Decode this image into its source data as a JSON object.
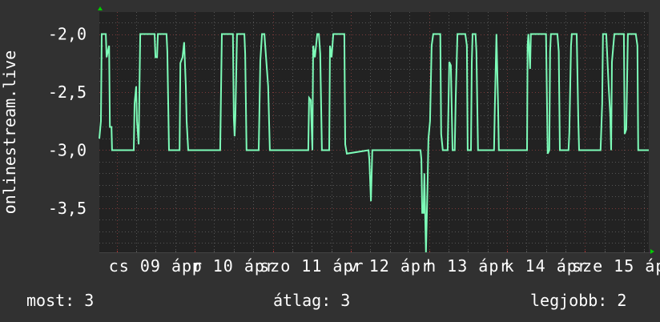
{
  "chart_data": {
    "type": "line",
    "ylabel": "onlinestream.live",
    "ylim": [
      -3.88,
      -1.81
    ],
    "xlim": [
      "04-08 18:40",
      "04-15 19:35"
    ],
    "y_ticks": [
      {
        "value": -2.0,
        "label": "-2,0"
      },
      {
        "value": -2.5,
        "label": "-2,5"
      },
      {
        "value": -3.0,
        "label": "-3,0"
      },
      {
        "value": -3.5,
        "label": "-3,5"
      }
    ],
    "x_ticks": [
      {
        "day": "04-09",
        "label": "cs 09 ápr"
      },
      {
        "day": "04-10",
        "label": "p 10 ápr"
      },
      {
        "day": "04-11",
        "label": "szo 11 ápr"
      },
      {
        "day": "04-12",
        "label": "v 12 ápr"
      },
      {
        "day": "04-13",
        "label": "h 13 ápr"
      },
      {
        "day": "04-14",
        "label": "k 14 ápr"
      },
      {
        "day": "04-15",
        "label": "sze 15 ápr"
      }
    ],
    "grid": true,
    "colors": {
      "line": "#7dfcb8",
      "background": "#313131",
      "plot": "#222222",
      "major_grid": "#7a3a3a",
      "minor_grid": "#555555",
      "arrow": "#00cc00"
    },
    "series": [
      {
        "points": [
          [
            "04-08 18:40",
            -2.9
          ],
          [
            "04-08 19:10",
            -2.75
          ],
          [
            "04-08 19:25",
            -2.0
          ],
          [
            "04-08 20:40",
            -2.0
          ],
          [
            "04-08 20:55",
            -2.2
          ],
          [
            "04-08 21:40",
            -2.1
          ],
          [
            "04-08 21:55",
            -2.8
          ],
          [
            "04-08 22:25",
            -2.8
          ],
          [
            "04-08 22:35",
            -3.0
          ],
          [
            "04-09 05:15",
            -3.0
          ],
          [
            "04-09 05:30",
            -2.6
          ],
          [
            "04-09 06:00",
            -2.45
          ],
          [
            "04-09 06:15",
            -2.75
          ],
          [
            "04-09 06:45",
            -2.95
          ],
          [
            "04-09 07:15",
            -2.0
          ],
          [
            "04-09 11:40",
            -2.0
          ],
          [
            "04-09 11:55",
            -2.2
          ],
          [
            "04-09 12:25",
            -2.2
          ],
          [
            "04-09 12:40",
            -2.0
          ],
          [
            "04-09 15:20",
            -2.0
          ],
          [
            "04-09 15:35",
            -2.15
          ],
          [
            "04-09 16:05",
            -3.0
          ],
          [
            "04-09 19:20",
            -3.0
          ],
          [
            "04-09 19:35",
            -2.25
          ],
          [
            "04-09 20:15",
            -2.2
          ],
          [
            "04-09 20:45",
            -2.07
          ],
          [
            "04-09 21:15",
            -2.45
          ],
          [
            "04-09 21:30",
            -2.75
          ],
          [
            "04-09 22:00",
            -3.0
          ],
          [
            "04-10 07:50",
            -3.0
          ],
          [
            "04-10 08:20",
            -2.0
          ],
          [
            "04-10 11:45",
            -2.0
          ],
          [
            "04-10 12:00",
            -2.72
          ],
          [
            "04-10 12:15",
            -2.88
          ],
          [
            "04-10 12:30",
            -2.7
          ],
          [
            "04-10 13:00",
            -2.0
          ],
          [
            "04-10 15:15",
            -2.0
          ],
          [
            "04-10 15:30",
            -2.17
          ],
          [
            "04-10 15:55",
            -3.0
          ],
          [
            "04-10 19:40",
            -3.0
          ],
          [
            "04-10 20:10",
            -2.23
          ],
          [
            "04-10 20:40",
            -2.0
          ],
          [
            "04-10 21:25",
            -2.0
          ],
          [
            "04-10 21:40",
            -2.1
          ],
          [
            "04-10 22:10",
            -2.3
          ],
          [
            "04-10 22:35",
            -2.45
          ],
          [
            "04-10 23:05",
            -3.0
          ],
          [
            "04-11 10:55",
            -3.0
          ],
          [
            "04-11 11:10",
            -2.55
          ],
          [
            "04-11 11:40",
            -2.57
          ],
          [
            "04-11 12:10",
            -3.0
          ],
          [
            "04-11 12:25",
            -2.1
          ],
          [
            "04-11 12:55",
            -2.2
          ],
          [
            "04-11 13:40",
            -2.0
          ],
          [
            "04-11 14:10",
            -2.0
          ],
          [
            "04-11 14:35",
            -2.17
          ],
          [
            "04-11 15:05",
            -3.0
          ],
          [
            "04-11 17:20",
            -3.0
          ],
          [
            "04-11 17:35",
            -2.1
          ],
          [
            "04-11 18:05",
            -2.2
          ],
          [
            "04-11 18:35",
            -2.0
          ],
          [
            "04-11 22:00",
            -2.0
          ],
          [
            "04-11 22:15",
            -2.95
          ],
          [
            "04-11 22:45",
            -3.03
          ],
          [
            "04-12 05:25",
            -3.0
          ],
          [
            "04-12 05:40",
            -3.08
          ],
          [
            "04-12 06:10",
            -3.44
          ],
          [
            "04-12 06:35",
            -3.0
          ],
          [
            "04-12 21:25",
            -3.0
          ],
          [
            "04-12 21:40",
            -3.08
          ],
          [
            "04-12 21:55",
            -3.54
          ],
          [
            "04-12 22:20",
            -3.54
          ],
          [
            "04-12 22:35",
            -3.2
          ],
          [
            "04-12 23:05",
            -3.88
          ],
          [
            "04-12 23:35",
            -3.3
          ],
          [
            "04-12 23:50",
            -2.9
          ],
          [
            "04-13 00:20",
            -2.75
          ],
          [
            "04-13 00:50",
            -2.1
          ],
          [
            "04-13 01:20",
            -2.0
          ],
          [
            "04-13 03:30",
            -2.0
          ],
          [
            "04-13 03:45",
            -2.86
          ],
          [
            "04-13 04:15",
            -3.0
          ],
          [
            "04-13 05:45",
            -3.0
          ],
          [
            "04-13 06:15",
            -2.24
          ],
          [
            "04-13 06:45",
            -2.27
          ],
          [
            "04-13 07:15",
            -3.0
          ],
          [
            "04-13 07:55",
            -3.0
          ],
          [
            "04-13 08:15",
            -2.54
          ],
          [
            "04-13 08:45",
            -2.0
          ],
          [
            "04-13 11:10",
            -2.0
          ],
          [
            "04-13 11:40",
            -2.1
          ],
          [
            "04-13 11:55",
            -3.0
          ],
          [
            "04-13 12:55",
            -3.0
          ],
          [
            "04-13 13:10",
            -2.25
          ],
          [
            "04-13 13:25",
            -2.0
          ],
          [
            "04-13 14:20",
            -2.0
          ],
          [
            "04-13 14:35",
            -2.15
          ],
          [
            "04-13 15:05",
            -3.0
          ],
          [
            "04-13 20:00",
            -3.0
          ],
          [
            "04-13 20:15",
            -2.63
          ],
          [
            "04-13 20:45",
            -2.0
          ],
          [
            "04-13 21:15",
            -2.6
          ],
          [
            "04-13 21:30",
            -3.0
          ],
          [
            "04-14 06:10",
            -3.0
          ],
          [
            "04-14 06:20",
            -2.1
          ],
          [
            "04-14 06:35",
            -2.0
          ],
          [
            "04-14 07:05",
            -2.3
          ],
          [
            "04-14 07:20",
            -2.0
          ],
          [
            "04-14 12:00",
            -2.0
          ],
          [
            "04-14 12:30",
            -3.03
          ],
          [
            "04-14 13:00",
            -3.0
          ],
          [
            "04-14 13:15",
            -2.15
          ],
          [
            "04-14 13:30",
            -2.0
          ],
          [
            "04-14 15:30",
            -2.0
          ],
          [
            "04-14 15:55",
            -2.15
          ],
          [
            "04-14 16:15",
            -3.0
          ],
          [
            "04-14 18:55",
            -3.0
          ],
          [
            "04-14 19:10",
            -2.85
          ],
          [
            "04-14 19:40",
            -2.1
          ],
          [
            "04-14 19:55",
            -2.0
          ],
          [
            "04-14 21:25",
            -2.0
          ],
          [
            "04-14 21:55",
            -2.74
          ],
          [
            "04-14 22:10",
            -3.0
          ],
          [
            "04-15 04:45",
            -3.0
          ],
          [
            "04-15 05:15",
            -2.6
          ],
          [
            "04-15 05:30",
            -2.0
          ],
          [
            "04-15 06:30",
            -2.0
          ],
          [
            "04-15 07:15",
            -2.45
          ],
          [
            "04-15 07:45",
            -2.7
          ],
          [
            "04-15 08:00",
            -3.0
          ],
          [
            "04-15 08:15",
            -2.24
          ],
          [
            "04-15 09:00",
            -2.0
          ],
          [
            "04-15 11:55",
            -2.0
          ],
          [
            "04-15 12:10",
            -2.86
          ],
          [
            "04-15 12:40",
            -2.82
          ],
          [
            "04-15 13:10",
            -2.0
          ],
          [
            "04-15 15:35",
            -2.0
          ],
          [
            "04-15 16:05",
            -2.1
          ],
          [
            "04-15 16:20",
            -3.0
          ],
          [
            "04-15 19:35",
            -3.0
          ]
        ]
      }
    ]
  },
  "legend": {
    "current": "most: 3",
    "average": "átlag: 3",
    "best": "legjobb: 2"
  }
}
